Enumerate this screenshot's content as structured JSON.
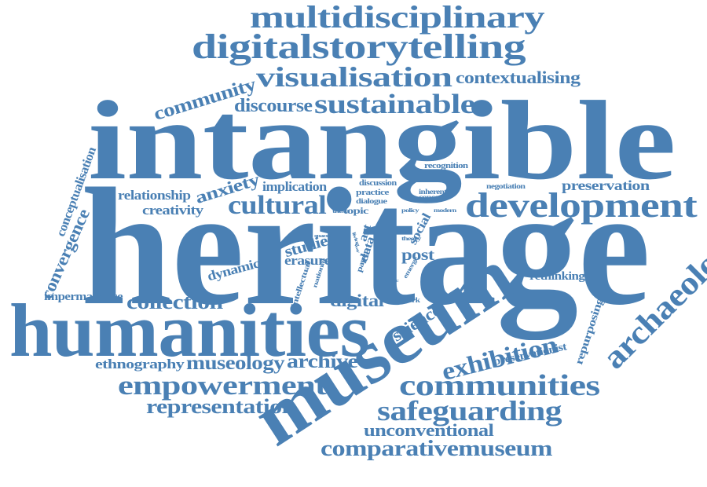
{
  "word_cloud": {
    "color": "#4a80b4",
    "words": [
      {
        "text": "intangible",
        "weight": 10.0
      },
      {
        "text": "heritage",
        "weight": 10.0
      },
      {
        "text": "humanities",
        "weight": 6.0
      },
      {
        "text": "museum",
        "weight": 5.5
      },
      {
        "text": "development",
        "weight": 3.4
      },
      {
        "text": "digitalstorytelling",
        "weight": 3.2
      },
      {
        "text": "multidisciplinary",
        "weight": 3.0
      },
      {
        "text": "visualisation",
        "weight": 3.0
      },
      {
        "text": "sustainable",
        "weight": 2.8
      },
      {
        "text": "archaeology",
        "weight": 2.8
      },
      {
        "text": "communities",
        "weight": 2.7
      },
      {
        "text": "safeguarding",
        "weight": 2.7
      },
      {
        "text": "empowerment",
        "weight": 2.6
      },
      {
        "text": "exhibition",
        "weight": 2.4
      },
      {
        "text": "cultural",
        "weight": 2.4
      },
      {
        "text": "comparativemuseum",
        "weight": 2.2
      },
      {
        "text": "community",
        "weight": 2.0
      },
      {
        "text": "collection",
        "weight": 2.0
      },
      {
        "text": "representation",
        "weight": 2.0
      },
      {
        "text": "museology",
        "weight": 1.9
      },
      {
        "text": "archive",
        "weight": 1.9
      },
      {
        "text": "discourse",
        "weight": 1.8
      },
      {
        "text": "anxiety",
        "weight": 1.8
      },
      {
        "text": "science",
        "weight": 1.8
      },
      {
        "text": "digital",
        "weight": 1.8
      },
      {
        "text": "unconventional",
        "weight": 1.8
      },
      {
        "text": "contextualising",
        "weight": 1.6
      },
      {
        "text": "convergence",
        "weight": 1.6
      },
      {
        "text": "preservation",
        "weight": 1.5
      },
      {
        "text": "ethnography",
        "weight": 1.5
      },
      {
        "text": "studies",
        "weight": 1.5
      },
      {
        "text": "post",
        "weight": 1.5
      },
      {
        "text": "conceptualisation",
        "weight": 1.3
      },
      {
        "text": "relationship",
        "weight": 1.3
      },
      {
        "text": "implication",
        "weight": 1.3
      },
      {
        "text": "creativity",
        "weight": 1.3
      },
      {
        "text": "dynamic",
        "weight": 1.3
      },
      {
        "text": "erasure",
        "weight": 1.3
      },
      {
        "text": "impermanence",
        "weight": 1.2
      },
      {
        "text": "repurposing",
        "weight": 1.2
      },
      {
        "text": "rethinking",
        "weight": 1.2
      },
      {
        "text": "preservationist",
        "weight": 1.2
      },
      {
        "text": "social",
        "weight": 1.2
      },
      {
        "text": "art",
        "weight": 1.2
      },
      {
        "text": "data",
        "weight": 1.2
      },
      {
        "text": "topic",
        "weight": 1.0
      },
      {
        "text": "discussion",
        "weight": 0.9
      },
      {
        "text": "practice",
        "weight": 0.9
      },
      {
        "text": "recognition",
        "weight": 0.8
      },
      {
        "text": "negotiation",
        "weight": 0.8
      },
      {
        "text": "dialogue",
        "weight": 0.8
      },
      {
        "text": "paper",
        "weight": 0.8
      },
      {
        "text": "fieldwork",
        "weight": 0.8
      },
      {
        "text": "inherent",
        "weight": 0.7
      },
      {
        "text": "concept",
        "weight": 0.7
      },
      {
        "text": "intellectual",
        "weight": 0.7
      },
      {
        "text": "national",
        "weight": 0.6
      },
      {
        "text": "emerge",
        "weight": 0.6
      },
      {
        "text": "thesis",
        "weight": 0.5
      },
      {
        "text": "policy",
        "weight": 0.5
      },
      {
        "text": "modern",
        "weight": 0.5
      },
      {
        "text": "theory",
        "weight": 0.5
      },
      {
        "text": "living",
        "weight": 0.5
      },
      {
        "text": "space",
        "weight": 0.5
      },
      {
        "text": "politic",
        "weight": 0.5
      },
      {
        "text": "way",
        "weight": 0.4
      }
    ]
  }
}
